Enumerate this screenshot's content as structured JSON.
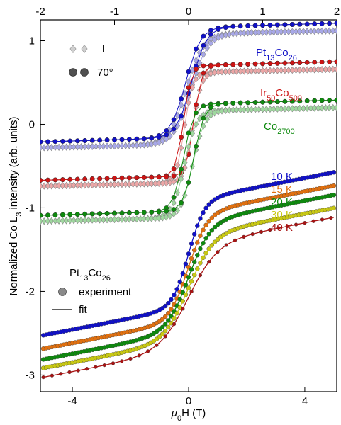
{
  "chart_data": {
    "type": "scatter",
    "x_bottom": {
      "label": "μ0H (T)",
      "range": [
        -5.1,
        5.1
      ],
      "ticks": [
        -4,
        0,
        4
      ],
      "tick_labels": [
        "-4",
        "0",
        "4"
      ]
    },
    "x_top": {
      "range": [
        -2,
        2
      ],
      "ticks": [
        -2,
        -1,
        0,
        1,
        2
      ],
      "tick_labels": [
        "-2",
        "-1",
        "0",
        "1",
        "2"
      ]
    },
    "y": {
      "label": "Normalized Co L3 intensity (arb. units)",
      "range": [
        -3.2,
        1.25
      ],
      "ticks": [
        1,
        0,
        -1,
        -2,
        -3
      ],
      "tick_labels": [
        "1",
        "0",
        "-1",
        "-2",
        "-3"
      ]
    },
    "legend_top": {
      "perp_label": "⊥",
      "angle_label": "70°"
    },
    "legend_bottom": {
      "title_base": "Pt",
      "title_sub1": "13",
      "title_mid": "Co",
      "title_sub2": "26",
      "experiment_label": "experiment",
      "fit_label": "fit"
    },
    "top_panel_series": [
      {
        "sample_base": "Pt",
        "sample_sub1": "13",
        "sample_mid": "Co",
        "sample_sub2": "26",
        "color": "#1010c8",
        "light": "#a8a8e8",
        "offset": 0.5,
        "amp": 0.66,
        "width": 0.2,
        "coercive": 0.04
      },
      {
        "sample_base": "Ir",
        "sample_sub1": "50",
        "sample_mid": "Co",
        "sample_sub2": "500",
        "color": "#cc1414",
        "light": "#eca6a6",
        "offset": 0.04,
        "amp": 0.66,
        "width": 0.1,
        "coercive": 0.07
      },
      {
        "sample_base": "Co",
        "sample_sub1": "2700",
        "sample_mid": "",
        "sample_sub2": "",
        "color": "#0e8a0e",
        "light": "#9fd89f",
        "offset": -0.4,
        "amp": 0.64,
        "width": 0.14,
        "coercive": 0.07
      }
    ],
    "bottom_panel_series": [
      {
        "name": "10 K",
        "color": "#1010c8",
        "offset": -1.55,
        "amp": 1.06,
        "width": 0.55
      },
      {
        "name": "15 K",
        "color": "#e07010",
        "offset": -1.71,
        "amp": 1.06,
        "width": 0.65
      },
      {
        "name": "20 K",
        "color": "#0e8a0e",
        "offset": -1.83,
        "amp": 1.07,
        "width": 0.75
      },
      {
        "name": "30 K",
        "color": "#c8c814",
        "offset": -1.96,
        "amp": 1.04,
        "width": 0.85
      },
      {
        "name": "40 K",
        "color": "#a81414",
        "offset": -2.07,
        "amp": 1.04,
        "width": 1.0
      }
    ]
  }
}
